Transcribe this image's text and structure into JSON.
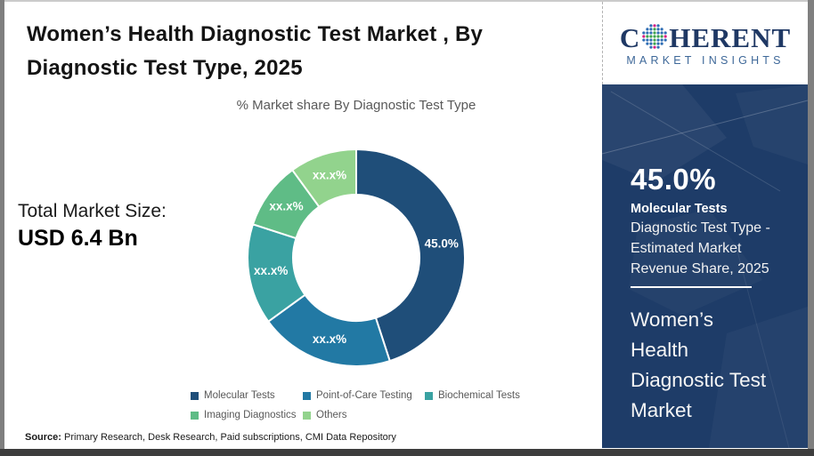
{
  "header": {
    "title": "Women’s Health Diagnostic Test Market , By\nDiagnostic Test Type, 2025",
    "subtitle": "% Market share By Diagnostic Test Type"
  },
  "logo": {
    "name_left": "C",
    "name_right": "HERENT",
    "tagline": "MARKET INSIGHTS",
    "text_color": "#1F3864",
    "globe_dot_colors": {
      "blue": "#2E6DB4",
      "green": "#3FA44E",
      "pink": "#D61F85"
    }
  },
  "total_market": {
    "label": "Total Market Size:",
    "value": "USD 6.4 Bn"
  },
  "chart_data": {
    "type": "pie",
    "donut": true,
    "title": "% Market share By Diagnostic Test Type",
    "labels": [
      "Molecular Tests",
      "Point-of-Care Testing",
      "Biochemical Tests",
      "Imaging Diagnostics",
      "Others"
    ],
    "values": [
      45.0,
      20.0,
      15.0,
      10.0,
      10.0
    ],
    "slice_labels": [
      "45.0%",
      "xx.x%",
      "xx.x%",
      "xx.x%",
      "xx.x%"
    ],
    "colors": [
      "#1F4E79",
      "#2279A4",
      "#3AA2A2",
      "#5FBC86",
      "#92D38D"
    ],
    "legend_position": "bottom",
    "start_angle_deg": 0,
    "direction": "clockwise"
  },
  "sidebar": {
    "highlight_value": "45.0%",
    "highlight_label": "Molecular Tests",
    "highlight_desc": "Diagnostic Test Type -\nEstimated Market\nRevenue Share, 2025",
    "market_name": "Women’s\nHealth\nDiagnostic Test\nMarket",
    "bg_color": "#1E3C68"
  },
  "footer": {
    "source_label": "Source:",
    "source_text": " Primary Research, Desk Research, Paid subscriptions, CMI Data Repository"
  }
}
